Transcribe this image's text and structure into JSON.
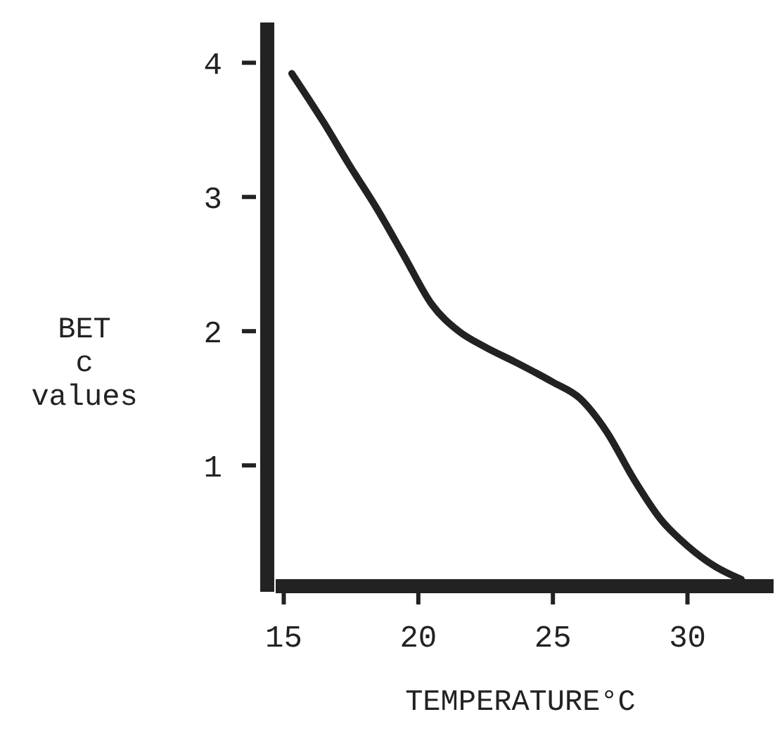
{
  "chart_data": {
    "type": "line",
    "xlabel": "TEMPERATURE°C",
    "ylabel": "BET\nc\nvalues",
    "x": [
      15.3,
      16.5,
      17.4,
      18.5,
      19.5,
      20.5,
      21.5,
      22.5,
      23.6,
      25,
      26,
      27,
      28,
      29,
      30,
      31,
      32
    ],
    "series": [
      {
        "color": "#222222",
        "values": [
          3.92,
          3.55,
          3.25,
          2.9,
          2.55,
          2.2,
          2.0,
          1.88,
          1.77,
          1.62,
          1.5,
          1.25,
          0.9,
          0.6,
          0.4,
          0.25,
          0.15
        ]
      }
    ],
    "xlim": [
      14.7,
      33.2
    ],
    "ylim": [
      0.1,
      4.3
    ],
    "xticks": [
      15,
      20,
      25,
      30
    ],
    "yticks": [
      1,
      2,
      3,
      4
    ],
    "grid": false,
    "marker": "none",
    "line_style": "solid"
  }
}
